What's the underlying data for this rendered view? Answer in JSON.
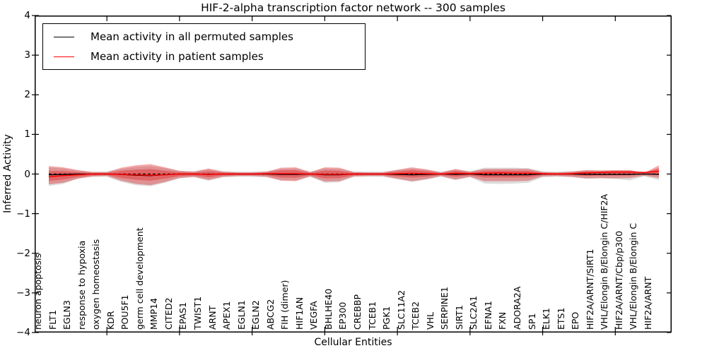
{
  "chart_data": {
    "type": "line",
    "title": "HIF-2-alpha transcription factor network -- 300 samples",
    "xlabel": "Cellular Entities",
    "ylabel": "Inferred Activity",
    "ylim": [
      -4,
      4
    ],
    "ytick_labels": [
      "4",
      "3",
      "2",
      "1",
      "0",
      "−1",
      "−2",
      "−3",
      "−4"
    ],
    "ytick_values": [
      4,
      3,
      2,
      1,
      0,
      -1,
      -2,
      -3,
      -4
    ],
    "xtick_entity_indices": [
      4,
      9,
      14,
      19,
      24,
      29,
      34,
      39
    ],
    "grid": false,
    "legend_position": "upper-left",
    "entities": [
      "neuron apoptosis",
      "FLT1",
      "EGLN3",
      "response to hypoxia",
      "oxygen homeostasis",
      "KDR",
      "POU5F1",
      "germ cell development",
      "MMP14",
      "CITED2",
      "EPAS1",
      "TWIST1",
      "ARNT",
      "APEX1",
      "EGLN1",
      "EGLN2",
      "ABCG2",
      "FIH (dimer)",
      "HIF1AN",
      "VEGFA",
      "BHLHE40",
      "EP300",
      "CREBBP",
      "TCEB1",
      "PGK1",
      "SLC11A2",
      "TCEB2",
      "VHL",
      "SERPINE1",
      "SIRT1",
      "SLC2A1",
      "EFNA1",
      "FXN",
      "ADORA2A",
      "SP1",
      "ELK1",
      "ETS1",
      "EPO",
      "HIF2A/ARNT/SIRT1",
      "VHL/Elongin B/Elongin C/HIF2A",
      "HIF2A/ARNT/Cbp/p300",
      "VHL/Elongin B/Elongin C",
      "HIF2A/ARNT"
    ],
    "legend": {
      "items": [
        {
          "label": "Mean activity in all permuted samples",
          "color": "#000000"
        },
        {
          "label": "Mean activity in patient samples",
          "color": "#ff0000"
        }
      ]
    },
    "series": [
      {
        "name": "Mean activity in all permuted samples",
        "color": "#000000",
        "style": "solid",
        "values": [
          -0.02,
          -0.01,
          0,
          0,
          0,
          -0.01,
          -0.03,
          -0.04,
          -0.02,
          0,
          0,
          -0.01,
          0,
          0,
          0,
          0,
          -0.01,
          -0.01,
          0,
          -0.02,
          -0.02,
          0,
          0,
          0,
          -0.01,
          -0.02,
          -0.01,
          0,
          -0.01,
          0,
          -0.02,
          -0.02,
          -0.02,
          -0.02,
          0,
          0,
          0,
          -0.01,
          -0.01,
          -0.01,
          -0.01,
          0,
          -0.01
        ]
      },
      {
        "name": "Mean activity in patient samples",
        "color": "#ff0000",
        "style": "solid",
        "values": [
          -0.07,
          -0.04,
          -0.02,
          0,
          0,
          -0.01,
          -0.02,
          -0.03,
          -0.02,
          0,
          0,
          -0.01,
          0,
          0,
          0,
          0.01,
          0.01,
          0.01,
          0,
          -0.01,
          -0.01,
          0,
          0,
          0,
          0.01,
          0.02,
          0.01,
          0,
          0.02,
          0.01,
          0.02,
          0.03,
          0.02,
          0.02,
          0.01,
          0,
          0.01,
          0.03,
          0.04,
          0.05,
          0.05,
          0.04,
          0.07
        ]
      }
    ],
    "zero_line": {
      "value": 0,
      "style": "dashed",
      "color": "#000000"
    },
    "bands": [
      {
        "name": "permuted-samples-range",
        "color": "#8a8a8a",
        "opacity": 0.3,
        "hi": [
          0.16,
          0.14,
          0.09,
          0.06,
          0.06,
          0.13,
          0.18,
          0.2,
          0.15,
          0.08,
          0.07,
          0.12,
          0.07,
          0.06,
          0.06,
          0.07,
          0.13,
          0.14,
          0.06,
          0.14,
          0.13,
          0.06,
          0.06,
          0.06,
          0.1,
          0.14,
          0.1,
          0.06,
          0.11,
          0.07,
          0.16,
          0.16,
          0.16,
          0.15,
          0.07,
          0.06,
          0.07,
          0.09,
          0.09,
          0.09,
          0.09,
          0.05,
          0.12
        ],
        "lo": [
          -0.3,
          -0.25,
          -0.11,
          -0.07,
          -0.07,
          -0.2,
          -0.28,
          -0.31,
          -0.22,
          -0.11,
          -0.08,
          -0.17,
          -0.08,
          -0.07,
          -0.07,
          -0.08,
          -0.15,
          -0.16,
          -0.07,
          -0.22,
          -0.21,
          -0.07,
          -0.07,
          -0.07,
          -0.13,
          -0.2,
          -0.14,
          -0.07,
          -0.15,
          -0.08,
          -0.24,
          -0.25,
          -0.24,
          -0.22,
          -0.08,
          -0.07,
          -0.08,
          -0.12,
          -0.11,
          -0.12,
          -0.16,
          -0.06,
          -0.15
        ]
      },
      {
        "name": "patient-samples-range",
        "color": "#e41a1c",
        "opacity": 0.38,
        "inner_scale": 0.55,
        "hi": [
          0.2,
          0.17,
          0.1,
          0.05,
          0.05,
          0.16,
          0.22,
          0.25,
          0.17,
          0.08,
          0.06,
          0.14,
          0.06,
          0.04,
          0.04,
          0.06,
          0.16,
          0.17,
          0.05,
          0.17,
          0.16,
          0.05,
          0.04,
          0.04,
          0.11,
          0.17,
          0.12,
          0.04,
          0.13,
          0.06,
          0.13,
          0.13,
          0.13,
          0.13,
          0.05,
          0.04,
          0.06,
          0.1,
          0.09,
          0.1,
          0.1,
          0.03,
          0.22
        ],
        "lo": [
          -0.26,
          -0.22,
          -0.12,
          -0.06,
          -0.05,
          -0.17,
          -0.25,
          -0.28,
          -0.2,
          -0.1,
          -0.07,
          -0.15,
          -0.07,
          -0.05,
          -0.05,
          -0.07,
          -0.17,
          -0.18,
          -0.06,
          -0.19,
          -0.18,
          -0.06,
          -0.05,
          -0.05,
          -0.12,
          -0.18,
          -0.13,
          -0.05,
          -0.14,
          -0.07,
          -0.18,
          -0.18,
          -0.18,
          -0.17,
          -0.06,
          -0.05,
          -0.07,
          -0.11,
          -0.1,
          -0.11,
          -0.1,
          -0.04,
          -0.1
        ]
      }
    ]
  }
}
